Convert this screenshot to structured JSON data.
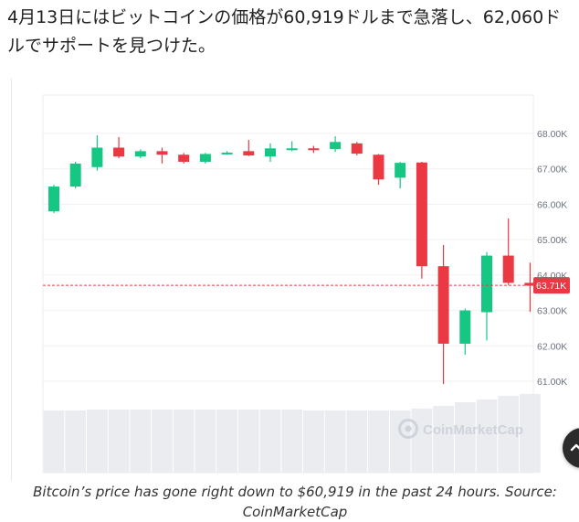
{
  "article": {
    "text": "4月13日にはビットコインの価格が60,919ドルまで急落し、62,060ドルでサポートを見つけた。"
  },
  "caption": "Bitcoin’s price has gone right down to $60,919 in the past 24 hours. Source: CoinMarketCap",
  "chart_data": {
    "type": "candlestick",
    "watermark": "CoinMarketCap",
    "ylim": [
      60000,
      68500
    ],
    "y_ticks": [
      61000,
      62000,
      63000,
      64000,
      65000,
      66000,
      67000,
      68000
    ],
    "y_tick_labels": [
      "61.00K",
      "62.00K",
      "63.00K",
      "64.00K",
      "65.00K",
      "66.00K",
      "67.00K",
      "68.00K"
    ],
    "current_price": 63710,
    "current_price_label": "63.71K",
    "grid": true,
    "colors": {
      "up": "#16c784",
      "down": "#ea3943",
      "price_line": "#ea3943"
    },
    "candles": [
      {
        "open": 65800,
        "close": 66500,
        "high": 66550,
        "low": 65750
      },
      {
        "open": 66500,
        "close": 67150,
        "high": 67200,
        "low": 66450
      },
      {
        "open": 67050,
        "close": 67600,
        "high": 67950,
        "low": 66950
      },
      {
        "open": 67600,
        "close": 67350,
        "high": 67900,
        "low": 67300
      },
      {
        "open": 67350,
        "close": 67500,
        "high": 67550,
        "low": 67300
      },
      {
        "open": 67500,
        "close": 67400,
        "high": 67600,
        "low": 67150
      },
      {
        "open": 67400,
        "close": 67200,
        "high": 67450,
        "low": 67150
      },
      {
        "open": 67200,
        "close": 67420,
        "high": 67450,
        "low": 67150
      },
      {
        "open": 67420,
        "close": 67460,
        "high": 67500,
        "low": 67400
      },
      {
        "open": 67500,
        "close": 67380,
        "high": 67820,
        "low": 67360
      },
      {
        "open": 67350,
        "close": 67580,
        "high": 67720,
        "low": 67200
      },
      {
        "open": 67560,
        "close": 67580,
        "high": 67780,
        "low": 67500
      },
      {
        "open": 67580,
        "close": 67560,
        "high": 67650,
        "low": 67450
      },
      {
        "open": 67560,
        "close": 67760,
        "high": 67920,
        "low": 67480
      },
      {
        "open": 67720,
        "close": 67430,
        "high": 67760,
        "low": 67380
      },
      {
        "open": 67400,
        "close": 66700,
        "high": 67420,
        "low": 66550
      },
      {
        "open": 66750,
        "close": 67170,
        "high": 67200,
        "low": 66450
      },
      {
        "open": 67180,
        "close": 64250,
        "high": 67200,
        "low": 63900
      },
      {
        "open": 64250,
        "close": 62060,
        "high": 64850,
        "low": 60919
      },
      {
        "open": 62060,
        "close": 63000,
        "high": 63050,
        "low": 61750
      },
      {
        "open": 62950,
        "close": 64550,
        "high": 64650,
        "low": 62150
      },
      {
        "open": 64550,
        "close": 63780,
        "high": 65600,
        "low": 63720
      },
      {
        "open": 63780,
        "close": 63700,
        "high": 64350,
        "low": 62960
      }
    ],
    "volume": [
      0.68,
      0.68,
      0.69,
      0.69,
      0.69,
      0.69,
      0.69,
      0.69,
      0.69,
      0.69,
      0.69,
      0.69,
      0.68,
      0.68,
      0.68,
      0.68,
      0.68,
      0.7,
      0.73,
      0.77,
      0.8,
      0.84,
      0.86
    ]
  },
  "icons": {
    "scroll_top": "arrow-up-icon"
  }
}
